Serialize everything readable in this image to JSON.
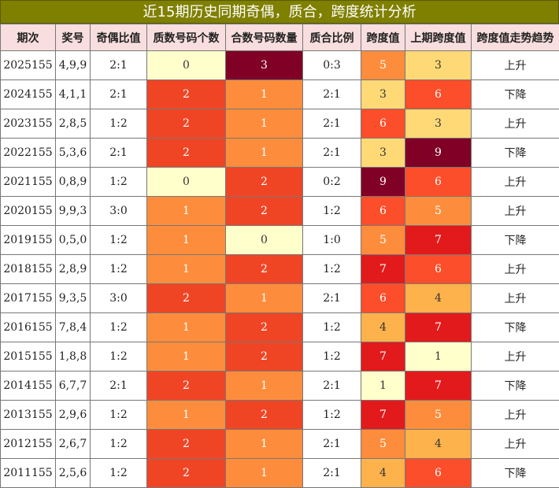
{
  "title": "近15期历史同期奇偶，质合，跨度统计分析",
  "headers": [
    "期次",
    "奖号",
    "奇偶比值",
    "质数号码个数",
    "合数号码数量",
    "质合比例",
    "跨度值",
    "上期跨度值",
    "跨度值走势趋势"
  ],
  "rows": [
    {
      "period": "2025155",
      "numbers": "4,9,9",
      "odd_even": "2:1",
      "prime": "0",
      "composite": "3",
      "pc_ratio": "0:3",
      "span": "5",
      "prev_span": "3",
      "trend": "上升"
    },
    {
      "period": "2024155",
      "numbers": "4,1,1",
      "odd_even": "2:1",
      "prime": "2",
      "composite": "1",
      "pc_ratio": "2:1",
      "span": "3",
      "prev_span": "6",
      "trend": "下降"
    },
    {
      "period": "2023155",
      "numbers": "2,8,5",
      "odd_even": "1:2",
      "prime": "2",
      "composite": "1",
      "pc_ratio": "2:1",
      "span": "6",
      "prev_span": "3",
      "trend": "上升"
    },
    {
      "period": "2022155",
      "numbers": "5,3,6",
      "odd_even": "2:1",
      "prime": "2",
      "composite": "1",
      "pc_ratio": "2:1",
      "span": "3",
      "prev_span": "9",
      "trend": "下降"
    },
    {
      "period": "2021155",
      "numbers": "0,8,9",
      "odd_even": "1:2",
      "prime": "0",
      "composite": "2",
      "pc_ratio": "0:2",
      "span": "9",
      "prev_span": "6",
      "trend": "上升"
    },
    {
      "period": "2020155",
      "numbers": "9,9,3",
      "odd_even": "3:0",
      "prime": "1",
      "composite": "2",
      "pc_ratio": "1:2",
      "span": "6",
      "prev_span": "5",
      "trend": "上升"
    },
    {
      "period": "2019155",
      "numbers": "0,5,0",
      "odd_even": "1:2",
      "prime": "1",
      "composite": "0",
      "pc_ratio": "1:0",
      "span": "5",
      "prev_span": "7",
      "trend": "下降"
    },
    {
      "period": "2018155",
      "numbers": "2,8,9",
      "odd_even": "1:2",
      "prime": "1",
      "composite": "2",
      "pc_ratio": "1:2",
      "span": "7",
      "prev_span": "6",
      "trend": "上升"
    },
    {
      "period": "2017155",
      "numbers": "9,3,5",
      "odd_even": "3:0",
      "prime": "2",
      "composite": "1",
      "pc_ratio": "2:1",
      "span": "6",
      "prev_span": "4",
      "trend": "上升"
    },
    {
      "period": "2016155",
      "numbers": "7,8,4",
      "odd_even": "1:2",
      "prime": "1",
      "composite": "2",
      "pc_ratio": "1:2",
      "span": "4",
      "prev_span": "7",
      "trend": "下降"
    },
    {
      "period": "2015155",
      "numbers": "1,8,8",
      "odd_even": "1:2",
      "prime": "1",
      "composite": "2",
      "pc_ratio": "1:2",
      "span": "7",
      "prev_span": "1",
      "trend": "上升"
    },
    {
      "period": "2014155",
      "numbers": "6,7,7",
      "odd_even": "2:1",
      "prime": "2",
      "composite": "1",
      "pc_ratio": "2:1",
      "span": "1",
      "prev_span": "7",
      "trend": "下降"
    },
    {
      "period": "2013155",
      "numbers": "2,9,6",
      "odd_even": "1:2",
      "prime": "1",
      "composite": "2",
      "pc_ratio": "1:2",
      "span": "7",
      "prev_span": "5",
      "trend": "上升"
    },
    {
      "period": "2012155",
      "numbers": "2,6,7",
      "odd_even": "1:2",
      "prime": "2",
      "composite": "1",
      "pc_ratio": "2:1",
      "span": "5",
      "prev_span": "4",
      "trend": "上升"
    },
    {
      "period": "2011155",
      "numbers": "2,5,6",
      "odd_even": "1:2",
      "prime": "2",
      "composite": "1",
      "pc_ratio": "2:1",
      "span": "4",
      "prev_span": "6",
      "trend": "下降"
    }
  ],
  "colors": {
    "title_bg": "#7f7f00",
    "header_bg": "#f8dede",
    "count_scale": {
      "0": "#ffffcc",
      "1": "#fd8d3c",
      "2": "#f04525",
      "3": "#800026"
    },
    "span_scale": {
      "1": "#ffffcc",
      "3": "#fed976",
      "4": "#feb24c",
      "5": "#fd8d3c",
      "6": "#fc4e2a",
      "7": "#e31a1c",
      "9": "#800026"
    }
  }
}
